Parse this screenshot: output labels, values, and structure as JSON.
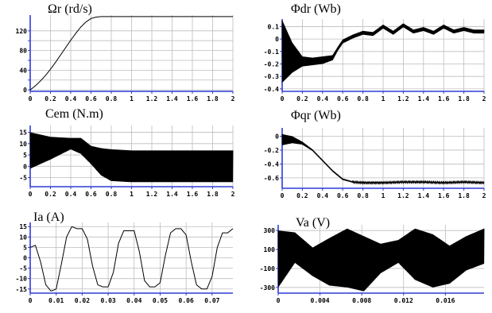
{
  "chart_data": [
    {
      "type": "line",
      "title": "Ωr (rd/s)",
      "xlim": [
        0,
        2
      ],
      "ylim": [
        -3,
        152
      ],
      "xticks": [
        "0",
        "0.2",
        "0.4",
        "0.6",
        "0.8",
        "1",
        "1.2",
        "1.4",
        "1.6",
        "1.8",
        "2"
      ],
      "xtick_values": [
        0,
        0.2,
        0.4,
        0.6,
        0.8,
        1.0,
        1.2,
        1.4,
        1.6,
        1.8,
        2.0
      ],
      "yticks": [
        "0",
        "20",
        "40",
        "60",
        "80",
        "100",
        "120"
      ],
      "ytick_values": [
        0,
        20,
        40,
        60,
        80,
        100,
        120
      ],
      "yticks_shown": [
        "0",
        "40",
        "80",
        "120"
      ],
      "grid": true,
      "series": [
        {
          "x": [
            0,
            0.05,
            0.1,
            0.15,
            0.2,
            0.25,
            0.3,
            0.35,
            0.4,
            0.45,
            0.5,
            0.55,
            0.6,
            0.65,
            0.7,
            0.8,
            1.0,
            1.4,
            2.0
          ],
          "y": [
            0,
            8,
            18,
            29,
            42,
            56,
            71,
            86,
            101,
            115,
            128,
            138,
            145,
            148,
            149,
            149,
            149,
            149,
            149
          ]
        }
      ]
    },
    {
      "type": "line",
      "title": "Φdr (Wb)",
      "xlim": [
        0,
        2
      ],
      "ylim": [
        -0.42,
        0.16
      ],
      "xticks": [
        "0",
        "0.2",
        "0.4",
        "0.6",
        "0.8",
        "1",
        "1.2",
        "1.4",
        "1.6",
        "1.8",
        "2"
      ],
      "xtick_values": [
        0,
        0.2,
        0.4,
        0.6,
        0.8,
        1.0,
        1.2,
        1.4,
        1.6,
        1.8,
        2.0
      ],
      "yticks": [
        "0.1",
        "0",
        "-0.1",
        "-0.2",
        "-0.3",
        "-0.4"
      ],
      "ytick_values": [
        0.1,
        0,
        -0.1,
        -0.2,
        -0.3,
        -0.4
      ],
      "grid": true,
      "series": [
        {
          "x": [
            0,
            0.1,
            0.2,
            0.3,
            0.4,
            0.5,
            0.55,
            0.6,
            0.7,
            0.8,
            0.9,
            1.0,
            1.1,
            1.2,
            1.3,
            1.4,
            1.5,
            1.6,
            1.7,
            1.8,
            1.9,
            2.0
          ],
          "y": [
            -0.1,
            -0.15,
            -0.18,
            -0.18,
            -0.17,
            -0.15,
            -0.08,
            -0.02,
            0.02,
            0.05,
            0.04,
            0.1,
            0.05,
            0.11,
            0.06,
            0.08,
            0.05,
            0.1,
            0.06,
            0.08,
            0.06,
            0.06
          ],
          "ripple": [
            0.25,
            0.12,
            0.04,
            0.03,
            0.03,
            0.02,
            0.015,
            0.015,
            0.015,
            0.015,
            0.015,
            0.015,
            0.015,
            0.015,
            0.015,
            0.015,
            0.015,
            0.015,
            0.015,
            0.015,
            0.015,
            0.015
          ]
        }
      ]
    },
    {
      "type": "line",
      "title": "Cem (N.m)",
      "xlim": [
        0,
        2
      ],
      "ylim": [
        -9,
        18
      ],
      "xticks": [
        "0",
        "0.2",
        "0.4",
        "0.6",
        "0.8",
        "1",
        "1.2",
        "1.4",
        "1.6",
        "1.8",
        "2"
      ],
      "xtick_values": [
        0,
        0.2,
        0.4,
        0.6,
        0.8,
        1.0,
        1.2,
        1.4,
        1.6,
        1.8,
        2.0
      ],
      "yticks": [
        "15",
        "10",
        "5",
        "0",
        "-5"
      ],
      "ytick_values": [
        15,
        10,
        5,
        0,
        -5
      ],
      "grid": true,
      "series": [
        {
          "x": [
            0,
            0.2,
            0.4,
            0.5,
            0.6,
            0.7,
            0.8,
            1.0,
            1.2,
            1.4,
            1.6,
            1.8,
            2.0
          ],
          "y": [
            7,
            8,
            10,
            9,
            5,
            2,
            0.5,
            0,
            0,
            0,
            0,
            0,
            0
          ],
          "ripple": [
            8,
            5,
            2.5,
            3.5,
            4,
            6,
            7,
            7,
            7,
            7,
            7,
            7,
            7
          ]
        }
      ]
    },
    {
      "type": "line",
      "title": "Φqr (Wb)",
      "xlim": [
        0,
        2
      ],
      "ylim": [
        -0.75,
        0.12
      ],
      "xticks": [
        "0",
        "0.2",
        "0.4",
        "0.6",
        "0.8",
        "1",
        "1.2",
        "1.4",
        "1.6",
        "1.8",
        "2"
      ],
      "xtick_values": [
        0,
        0.2,
        0.4,
        0.6,
        0.8,
        1.0,
        1.2,
        1.4,
        1.6,
        1.8,
        2.0
      ],
      "yticks": [
        "0",
        "-0.2",
        "-0.4",
        "-0.6"
      ],
      "ytick_values": [
        0,
        -0.2,
        -0.4,
        -0.6
      ],
      "grid": true,
      "series": [
        {
          "x": [
            0,
            0.1,
            0.2,
            0.3,
            0.4,
            0.5,
            0.6,
            0.7,
            0.8,
            1.0,
            1.2,
            1.4,
            1.6,
            1.8,
            2.0
          ],
          "y": [
            -0.05,
            -0.05,
            -0.1,
            -0.2,
            -0.35,
            -0.5,
            -0.62,
            -0.66,
            -0.67,
            -0.67,
            -0.66,
            -0.66,
            -0.67,
            -0.66,
            -0.67
          ],
          "ripple": [
            0.08,
            0.05,
            0.02,
            0.01,
            0.01,
            0.01,
            0.01,
            0.008,
            0.008,
            0.008,
            0.008,
            0.008,
            0.008,
            0.008,
            0.008
          ]
        }
      ]
    },
    {
      "type": "line",
      "title": "Ia (A)",
      "xlim": [
        0,
        0.078
      ],
      "ylim": [
        -17,
        17
      ],
      "xticks": [
        "0",
        "0.01",
        "0.02",
        "0.03",
        "0.04",
        "0.05",
        "0.06",
        "0.07"
      ],
      "xtick_values": [
        0,
        0.01,
        0.02,
        0.03,
        0.04,
        0.05,
        0.06,
        0.07
      ],
      "yticks": [
        "15",
        "10",
        "5",
        "0",
        "-5",
        "-10",
        "-15"
      ],
      "ytick_values": [
        15,
        10,
        5,
        0,
        -5,
        -10,
        -15
      ],
      "grid": true,
      "series": [
        {
          "x": [
            0,
            0.002,
            0.004,
            0.006,
            0.008,
            0.01,
            0.012,
            0.014,
            0.016,
            0.018,
            0.02,
            0.022,
            0.024,
            0.026,
            0.028,
            0.03,
            0.032,
            0.034,
            0.036,
            0.038,
            0.04,
            0.042,
            0.044,
            0.046,
            0.048,
            0.05,
            0.052,
            0.054,
            0.056,
            0.058,
            0.06,
            0.062,
            0.064,
            0.066,
            0.068,
            0.07,
            0.072,
            0.074,
            0.076,
            0.078
          ],
          "y": [
            5,
            6,
            -2,
            -13,
            -16,
            -15,
            -3,
            10,
            15,
            14,
            14,
            9,
            -4,
            -13,
            -14,
            -14,
            -7,
            7,
            13,
            13,
            13,
            3,
            -11,
            -14,
            -14,
            -12,
            1,
            12,
            14,
            14,
            11,
            -2,
            -13,
            -15,
            -15,
            -9,
            5,
            12,
            12,
            14
          ]
        }
      ]
    },
    {
      "type": "line",
      "title": "Va (V)",
      "xlim": [
        0,
        0.0197
      ],
      "ylim": [
        -360,
        360
      ],
      "xticks": [
        "0",
        "0.004",
        "0.008",
        "0.012",
        "0.016"
      ],
      "xtick_values": [
        0,
        0.004,
        0.008,
        0.012,
        0.016
      ],
      "yticks": [
        "300",
        "100",
        "-100",
        "-300"
      ],
      "ytick_values": [
        300,
        100,
        -100,
        -300
      ],
      "grid": true,
      "series": [
        {
          "x": [
            0,
            0.0016,
            0.0033,
            0.0049,
            0.0066,
            0.0082,
            0.0098,
            0.0115,
            0.0131,
            0.0148,
            0.0164,
            0.018,
            0.0197
          ],
          "y_upper": [
            300,
            280,
            120,
            220,
            320,
            240,
            160,
            200,
            320,
            260,
            140,
            240,
            320
          ],
          "y_lower": [
            -300,
            -40,
            -180,
            -280,
            -300,
            -340,
            -150,
            -40,
            -220,
            -300,
            -260,
            -120,
            -50
          ]
        }
      ]
    }
  ]
}
